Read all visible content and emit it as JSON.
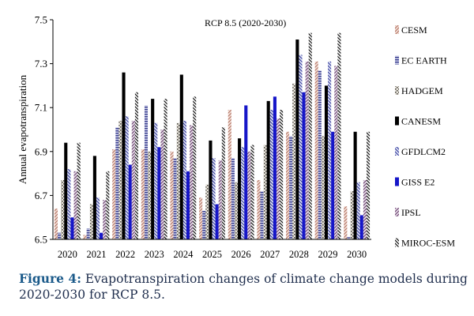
{
  "chart_data": {
    "type": "bar",
    "title": "RCP 8.5 (2020-2030)",
    "ylabel": "Annual evapotranspiration",
    "xlabel": "",
    "ylim": [
      6.5,
      7.5
    ],
    "yticks": [
      "7.5",
      "7.3",
      "7.1",
      "6.9",
      "6.7",
      "6.5"
    ],
    "legend_position": "right",
    "grid": false,
    "categories": [
      "2020",
      "2021",
      "2022",
      "2023",
      "2024",
      "2025",
      "2026",
      "2027",
      "2028",
      "2029",
      "2030"
    ],
    "series": [
      {
        "name": "CESM",
        "pattern": "cesm",
        "values": [
          6.64,
          6.52,
          6.91,
          6.91,
          6.9,
          6.69,
          7.09,
          6.77,
          6.99,
          7.31,
          6.65
        ]
      },
      {
        "name": "EC EARTH",
        "pattern": "ecearth",
        "values": [
          6.53,
          6.55,
          7.01,
          7.11,
          6.87,
          6.63,
          6.87,
          6.72,
          6.97,
          7.27,
          6.51
        ]
      },
      {
        "name": "HADGEM",
        "pattern": "hadgem",
        "values": [
          6.77,
          6.66,
          7.04,
          6.9,
          7.03,
          6.75,
          6.76,
          6.93,
          7.21,
          6.97,
          6.72
        ]
      },
      {
        "name": "CANESM",
        "pattern": "canesm",
        "values": [
          6.94,
          6.88,
          7.26,
          7.14,
          7.25,
          6.95,
          6.96,
          7.13,
          7.41,
          7.2,
          6.99
        ]
      },
      {
        "name": "GFDLCM2",
        "pattern": "gfdlcm2",
        "values": [
          6.82,
          6.69,
          7.06,
          7.03,
          7.04,
          6.87,
          6.92,
          7.09,
          7.34,
          7.31,
          6.76
        ]
      },
      {
        "name": "GISS E2",
        "pattern": "gisse2",
        "values": [
          6.6,
          6.53,
          6.84,
          6.92,
          6.81,
          6.66,
          7.11,
          7.15,
          7.17,
          6.99,
          6.61
        ]
      },
      {
        "name": "IPSL",
        "pattern": "ipsl",
        "values": [
          6.81,
          6.68,
          7.04,
          7.0,
          7.02,
          6.86,
          6.9,
          7.05,
          7.31,
          7.29,
          6.77
        ]
      },
      {
        "name": "MIROC-ESM",
        "pattern": "miroc",
        "values": [
          6.94,
          6.81,
          7.17,
          7.14,
          7.15,
          7.01,
          6.93,
          7.09,
          7.44,
          7.44,
          6.99
        ]
      }
    ]
  },
  "caption": {
    "label": "Figure 4:",
    "text": " Evapotranspiration changes of climate change models during 2020-2030 for RCP 8.5."
  }
}
